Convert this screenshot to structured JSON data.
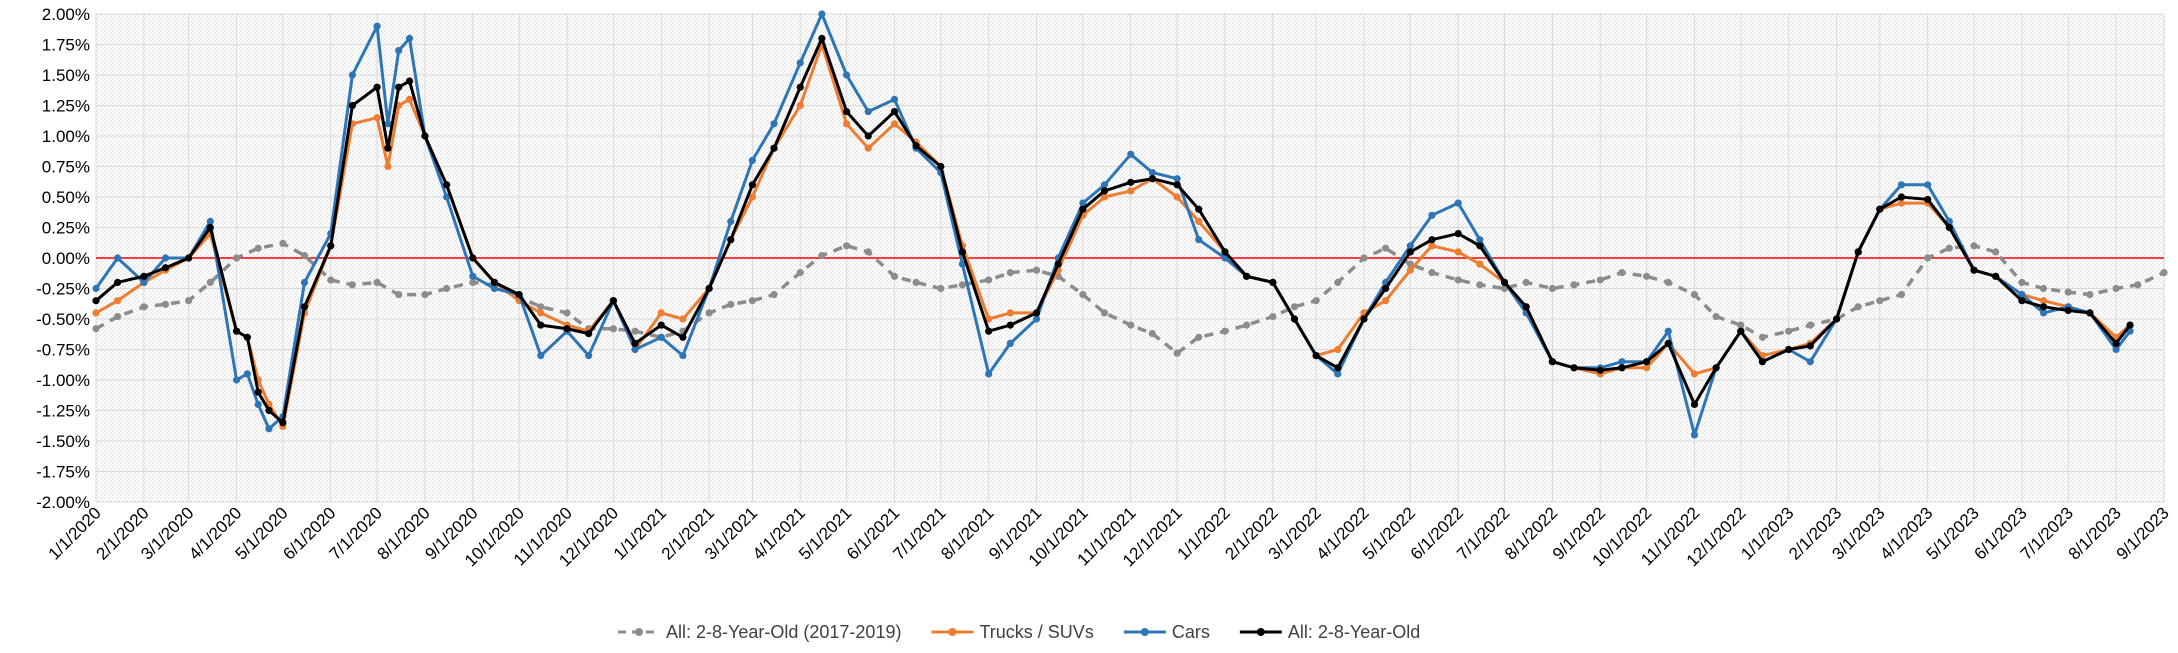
{
  "chart_data": {
    "type": "line",
    "title": "",
    "xlabel": "",
    "ylabel": "",
    "ylim": [
      -0.02,
      0.02
    ],
    "y_tick_step": 0.0025,
    "y_tick_labels": [
      "2.00%",
      "1.75%",
      "1.50%",
      "1.25%",
      "1.00%",
      "0.75%",
      "0.50%",
      "0.25%",
      "0.00%",
      "-0.25%",
      "-0.50%",
      "-0.75%",
      "-1.00%",
      "-1.25%",
      "-1.50%",
      "-1.75%",
      "-2.00%"
    ],
    "x_range": [
      "1/1/2020",
      "9/1/2023"
    ],
    "x_tick_labels": [
      "1/1/2020",
      "2/1/2020",
      "3/1/2020",
      "4/1/2020",
      "5/1/2020",
      "6/1/2020",
      "7/1/2020",
      "8/1/2020",
      "9/1/2020",
      "10/1/2020",
      "11/1/2020",
      "12/1/2020",
      "1/1/2021",
      "2/1/2021",
      "3/1/2021",
      "4/1/2021",
      "5/1/2021",
      "6/1/2021",
      "7/1/2021",
      "8/1/2021",
      "9/1/2021",
      "10/1/2021",
      "11/1/2021",
      "12/1/2021",
      "1/1/2022",
      "2/1/2022",
      "3/1/2022",
      "4/1/2022",
      "5/1/2022",
      "6/1/2022",
      "7/1/2022",
      "8/1/2022",
      "9/1/2022",
      "10/1/2022",
      "11/1/2022",
      "12/1/2022",
      "1/1/2023",
      "2/1/2023",
      "3/1/2023",
      "4/1/2023",
      "5/1/2023",
      "6/1/2023",
      "7/1/2023",
      "8/1/2023",
      "9/1/2023"
    ],
    "grid": true,
    "zero_line": true,
    "legend_position": "bottom",
    "series": [
      {
        "name": "All: 2-8-Year-Old (2017-2019)",
        "color": "#8c8c8c",
        "dashed": true,
        "x": [
          "1/1/2020",
          "1/15/2020",
          "2/1/2020",
          "2/15/2020",
          "3/1/2020",
          "3/15/2020",
          "4/1/2020",
          "4/15/2020",
          "5/1/2020",
          "5/15/2020",
          "6/1/2020",
          "6/15/2020",
          "7/1/2020",
          "7/15/2020",
          "8/1/2020",
          "8/15/2020",
          "9/1/2020",
          "9/15/2020",
          "10/1/2020",
          "10/15/2020",
          "11/1/2020",
          "11/15/2020",
          "12/1/2020",
          "12/15/2020",
          "1/1/2021",
          "1/15/2021",
          "2/1/2021",
          "2/15/2021",
          "3/1/2021",
          "3/15/2021",
          "4/1/2021",
          "4/15/2021",
          "5/1/2021",
          "5/15/2021",
          "6/1/2021",
          "6/15/2021",
          "7/1/2021",
          "7/15/2021",
          "8/1/2021",
          "8/15/2021",
          "9/1/2021",
          "9/15/2021",
          "10/1/2021",
          "10/15/2021",
          "11/1/2021",
          "11/15/2021",
          "12/1/2021",
          "12/15/2021",
          "1/1/2022",
          "1/15/2022",
          "2/1/2022",
          "2/15/2022",
          "3/1/2022",
          "3/15/2022",
          "4/1/2022",
          "4/15/2022",
          "5/1/2022",
          "5/15/2022",
          "6/1/2022",
          "6/15/2022",
          "7/1/2022",
          "7/15/2022",
          "8/1/2022",
          "8/15/2022",
          "9/1/2022",
          "9/15/2022",
          "10/1/2022",
          "10/15/2022",
          "11/1/2022",
          "11/15/2022",
          "12/1/2022",
          "12/15/2022",
          "1/1/2023",
          "1/15/2023",
          "2/1/2023",
          "2/15/2023",
          "3/1/2023",
          "3/15/2023",
          "4/1/2023",
          "4/15/2023",
          "5/1/2023",
          "5/15/2023",
          "6/1/2023",
          "6/15/2023",
          "7/1/2023",
          "7/15/2023",
          "8/1/2023",
          "8/15/2023",
          "9/1/2023"
        ],
        "y": [
          -0.0058,
          -0.0048,
          -0.004,
          -0.0038,
          -0.0035,
          -0.002,
          0.0,
          0.0008,
          0.0012,
          0.0002,
          -0.0018,
          -0.0022,
          -0.002,
          -0.003,
          -0.003,
          -0.0025,
          -0.002,
          -0.0022,
          -0.0032,
          -0.004,
          -0.0045,
          -0.0058,
          -0.0058,
          -0.006,
          -0.0065,
          -0.006,
          -0.0045,
          -0.0038,
          -0.0035,
          -0.003,
          -0.0012,
          0.0002,
          0.001,
          0.0005,
          -0.0015,
          -0.002,
          -0.0025,
          -0.0022,
          -0.0018,
          -0.0012,
          -0.001,
          -0.0015,
          -0.003,
          -0.0045,
          -0.0055,
          -0.0062,
          -0.0078,
          -0.0065,
          -0.006,
          -0.0055,
          -0.0048,
          -0.004,
          -0.0035,
          -0.002,
          0.0,
          0.0008,
          -0.0005,
          -0.0012,
          -0.0018,
          -0.0022,
          -0.0025,
          -0.002,
          -0.0025,
          -0.0022,
          -0.0018,
          -0.0012,
          -0.0015,
          -0.002,
          -0.003,
          -0.0048,
          -0.0055,
          -0.0065,
          -0.006,
          -0.0055,
          -0.005,
          -0.004,
          -0.0035,
          -0.003,
          0.0,
          0.0008,
          0.001,
          0.0005,
          -0.002,
          -0.0025,
          -0.0028,
          -0.003,
          -0.0025,
          -0.0022,
          -0.0012
        ]
      },
      {
        "name": "Trucks / SUVs",
        "color": "#ed7d31",
        "dashed": false,
        "x": [
          "1/1/2020",
          "1/15/2020",
          "2/1/2020",
          "2/15/2020",
          "3/1/2020",
          "3/15/2020",
          "4/1/2020",
          "4/8/2020",
          "4/15/2020",
          "4/22/2020",
          "5/1/2020",
          "5/15/2020",
          "6/1/2020",
          "6/15/2020",
          "7/1/2020",
          "7/8/2020",
          "7/15/2020",
          "7/22/2020",
          "8/1/2020",
          "8/15/2020",
          "9/1/2020",
          "9/15/2020",
          "10/1/2020",
          "10/15/2020",
          "11/1/2020",
          "11/15/2020",
          "12/1/2020",
          "12/15/2020",
          "1/1/2021",
          "1/15/2021",
          "2/1/2021",
          "2/15/2021",
          "3/1/2021",
          "3/15/2021",
          "4/1/2021",
          "4/15/2021",
          "5/1/2021",
          "5/15/2021",
          "6/1/2021",
          "6/15/2021",
          "7/1/2021",
          "7/15/2021",
          "8/1/2021",
          "8/15/2021",
          "9/1/2021",
          "9/15/2021",
          "10/1/2021",
          "10/15/2021",
          "11/1/2021",
          "11/15/2021",
          "12/1/2021",
          "12/15/2021",
          "1/1/2022",
          "1/15/2022",
          "2/1/2022",
          "2/15/2022",
          "3/1/2022",
          "3/15/2022",
          "4/1/2022",
          "4/15/2022",
          "5/1/2022",
          "5/15/2022",
          "6/1/2022",
          "6/15/2022",
          "7/1/2022",
          "7/15/2022",
          "8/1/2022",
          "8/15/2022",
          "9/1/2022",
          "9/15/2022",
          "10/1/2022",
          "10/15/2022",
          "11/1/2022",
          "11/15/2022",
          "12/1/2022",
          "12/15/2022",
          "1/1/2023",
          "1/15/2023",
          "2/1/2023",
          "2/15/2023",
          "3/1/2023",
          "3/15/2023",
          "4/1/2023",
          "4/15/2023",
          "5/1/2023",
          "5/15/2023",
          "6/1/2023",
          "6/15/2023",
          "7/1/2023",
          "7/15/2023",
          "8/1/2023",
          "8/10/2023"
        ],
        "y": [
          -0.0045,
          -0.0035,
          -0.002,
          -0.001,
          0.0,
          0.002,
          -0.006,
          -0.0065,
          -0.01,
          -0.012,
          -0.0138,
          -0.0045,
          0.001,
          0.011,
          0.0115,
          0.0075,
          0.0125,
          0.013,
          0.01,
          0.006,
          0.0,
          -0.002,
          -0.0035,
          -0.0045,
          -0.0055,
          -0.006,
          -0.0035,
          -0.0075,
          -0.0045,
          -0.005,
          -0.0025,
          0.0015,
          0.005,
          0.009,
          0.0125,
          0.0175,
          0.011,
          0.009,
          0.011,
          0.0095,
          0.0075,
          0.001,
          -0.005,
          -0.0045,
          -0.0045,
          -0.001,
          0.0035,
          0.005,
          0.0055,
          0.0065,
          0.005,
          0.003,
          0.0005,
          -0.0015,
          -0.002,
          -0.005,
          -0.008,
          -0.0075,
          -0.0045,
          -0.0035,
          -0.001,
          0.001,
          0.0005,
          -0.0005,
          -0.002,
          -0.004,
          -0.0085,
          -0.009,
          -0.0095,
          -0.009,
          -0.009,
          -0.007,
          -0.0095,
          -0.009,
          -0.006,
          -0.008,
          -0.0075,
          -0.007,
          -0.005,
          0.0005,
          0.004,
          0.0045,
          0.0045,
          0.0025,
          -0.001,
          -0.0015,
          -0.003,
          -0.0035,
          -0.004,
          -0.0045,
          -0.0065,
          -0.0055
        ]
      },
      {
        "name": "Cars",
        "color": "#2e75b6",
        "dashed": false,
        "x": [
          "1/1/2020",
          "1/15/2020",
          "2/1/2020",
          "2/15/2020",
          "3/1/2020",
          "3/15/2020",
          "4/1/2020",
          "4/8/2020",
          "4/15/2020",
          "4/22/2020",
          "5/1/2020",
          "5/15/2020",
          "6/1/2020",
          "6/15/2020",
          "7/1/2020",
          "7/8/2020",
          "7/15/2020",
          "7/22/2020",
          "8/1/2020",
          "8/15/2020",
          "9/1/2020",
          "9/15/2020",
          "10/1/2020",
          "10/15/2020",
          "11/1/2020",
          "11/15/2020",
          "12/1/2020",
          "12/15/2020",
          "1/1/2021",
          "1/15/2021",
          "2/1/2021",
          "2/15/2021",
          "3/1/2021",
          "3/15/2021",
          "4/1/2021",
          "4/15/2021",
          "5/1/2021",
          "5/15/2021",
          "6/1/2021",
          "6/15/2021",
          "7/1/2021",
          "7/15/2021",
          "8/1/2021",
          "8/15/2021",
          "9/1/2021",
          "9/15/2021",
          "10/1/2021",
          "10/15/2021",
          "11/1/2021",
          "11/15/2021",
          "12/1/2021",
          "12/15/2021",
          "1/1/2022",
          "1/15/2022",
          "2/1/2022",
          "2/15/2022",
          "3/1/2022",
          "3/15/2022",
          "4/1/2022",
          "4/15/2022",
          "5/1/2022",
          "5/15/2022",
          "6/1/2022",
          "6/15/2022",
          "7/1/2022",
          "7/15/2022",
          "8/1/2022",
          "8/15/2022",
          "9/1/2022",
          "9/15/2022",
          "10/1/2022",
          "10/15/2022",
          "11/1/2022",
          "11/15/2022",
          "12/1/2022",
          "12/15/2022",
          "1/1/2023",
          "1/15/2023",
          "2/1/2023",
          "2/15/2023",
          "3/1/2023",
          "3/15/2023",
          "4/1/2023",
          "4/15/2023",
          "5/1/2023",
          "5/15/2023",
          "6/1/2023",
          "6/15/2023",
          "7/1/2023",
          "7/15/2023",
          "8/1/2023",
          "8/10/2023"
        ],
        "y": [
          -0.0025,
          0.0,
          -0.002,
          0.0,
          0.0,
          0.003,
          -0.01,
          -0.0095,
          -0.012,
          -0.014,
          -0.013,
          -0.002,
          0.002,
          0.015,
          0.019,
          0.011,
          0.017,
          0.018,
          0.01,
          0.005,
          -0.0015,
          -0.0025,
          -0.003,
          -0.008,
          -0.006,
          -0.008,
          -0.0035,
          -0.0075,
          -0.0065,
          -0.008,
          -0.0025,
          0.003,
          0.008,
          0.011,
          0.016,
          0.02,
          0.015,
          0.012,
          0.013,
          0.009,
          0.007,
          -0.0005,
          -0.0095,
          -0.007,
          -0.005,
          0.0,
          0.0045,
          0.006,
          0.0085,
          0.007,
          0.0065,
          0.0015,
          0.0,
          -0.0015,
          -0.002,
          -0.005,
          -0.008,
          -0.0095,
          -0.005,
          -0.002,
          0.001,
          0.0035,
          0.0045,
          0.0015,
          -0.002,
          -0.0045,
          -0.0085,
          -0.009,
          -0.009,
          -0.0085,
          -0.0085,
          -0.006,
          -0.0145,
          -0.009,
          -0.006,
          -0.0085,
          -0.0075,
          -0.0085,
          -0.005,
          0.0005,
          0.004,
          0.006,
          0.006,
          0.003,
          -0.001,
          -0.0015,
          -0.003,
          -0.0045,
          -0.004,
          -0.0045,
          -0.0075,
          -0.006
        ]
      },
      {
        "name": "All: 2-8-Year-Old",
        "color": "#000000",
        "dashed": false,
        "x": [
          "1/1/2020",
          "1/15/2020",
          "2/1/2020",
          "2/15/2020",
          "3/1/2020",
          "3/15/2020",
          "4/1/2020",
          "4/8/2020",
          "4/15/2020",
          "4/22/2020",
          "5/1/2020",
          "5/15/2020",
          "6/1/2020",
          "6/15/2020",
          "7/1/2020",
          "7/8/2020",
          "7/15/2020",
          "7/22/2020",
          "8/1/2020",
          "8/15/2020",
          "9/1/2020",
          "9/15/2020",
          "10/1/2020",
          "10/15/2020",
          "11/1/2020",
          "11/15/2020",
          "12/1/2020",
          "12/15/2020",
          "1/1/2021",
          "1/15/2021",
          "2/1/2021",
          "2/15/2021",
          "3/1/2021",
          "3/15/2021",
          "4/1/2021",
          "4/15/2021",
          "5/1/2021",
          "5/15/2021",
          "6/1/2021",
          "6/15/2021",
          "7/1/2021",
          "7/15/2021",
          "8/1/2021",
          "8/15/2021",
          "9/1/2021",
          "9/15/2021",
          "10/1/2021",
          "10/15/2021",
          "11/1/2021",
          "11/15/2021",
          "12/1/2021",
          "12/15/2021",
          "1/1/2022",
          "1/15/2022",
          "2/1/2022",
          "2/15/2022",
          "3/1/2022",
          "3/15/2022",
          "4/1/2022",
          "4/15/2022",
          "5/1/2022",
          "5/15/2022",
          "6/1/2022",
          "6/15/2022",
          "7/1/2022",
          "7/15/2022",
          "8/1/2022",
          "8/15/2022",
          "9/1/2022",
          "9/15/2022",
          "10/1/2022",
          "10/15/2022",
          "11/1/2022",
          "11/15/2022",
          "12/1/2022",
          "12/15/2022",
          "1/1/2023",
          "1/15/2023",
          "2/1/2023",
          "2/15/2023",
          "3/1/2023",
          "3/15/2023",
          "4/1/2023",
          "4/15/2023",
          "5/1/2023",
          "5/15/2023",
          "6/1/2023",
          "6/15/2023",
          "7/1/2023",
          "7/15/2023",
          "8/1/2023",
          "8/10/2023"
        ],
        "y": [
          -0.0035,
          -0.002,
          -0.0015,
          -0.0008,
          0.0,
          0.0025,
          -0.006,
          -0.0065,
          -0.011,
          -0.0125,
          -0.0135,
          -0.004,
          0.001,
          0.0125,
          0.014,
          0.009,
          0.014,
          0.0145,
          0.01,
          0.006,
          0.0,
          -0.002,
          -0.003,
          -0.0055,
          -0.0058,
          -0.0062,
          -0.0035,
          -0.007,
          -0.0055,
          -0.0065,
          -0.0025,
          0.0015,
          0.006,
          0.009,
          0.014,
          0.018,
          0.012,
          0.01,
          0.012,
          0.0092,
          0.0075,
          0.0005,
          -0.006,
          -0.0055,
          -0.0045,
          -0.0005,
          0.004,
          0.0055,
          0.0062,
          0.0065,
          0.006,
          0.004,
          0.0005,
          -0.0015,
          -0.002,
          -0.005,
          -0.008,
          -0.009,
          -0.005,
          -0.0025,
          0.0005,
          0.0015,
          0.002,
          0.001,
          -0.002,
          -0.004,
          -0.0085,
          -0.009,
          -0.0092,
          -0.009,
          -0.0085,
          -0.007,
          -0.012,
          -0.009,
          -0.006,
          -0.0085,
          -0.0075,
          -0.0072,
          -0.005,
          0.0005,
          0.004,
          0.005,
          0.0048,
          0.0025,
          -0.001,
          -0.0015,
          -0.0035,
          -0.004,
          -0.0043,
          -0.0045,
          -0.007,
          -0.0055
        ]
      }
    ]
  }
}
